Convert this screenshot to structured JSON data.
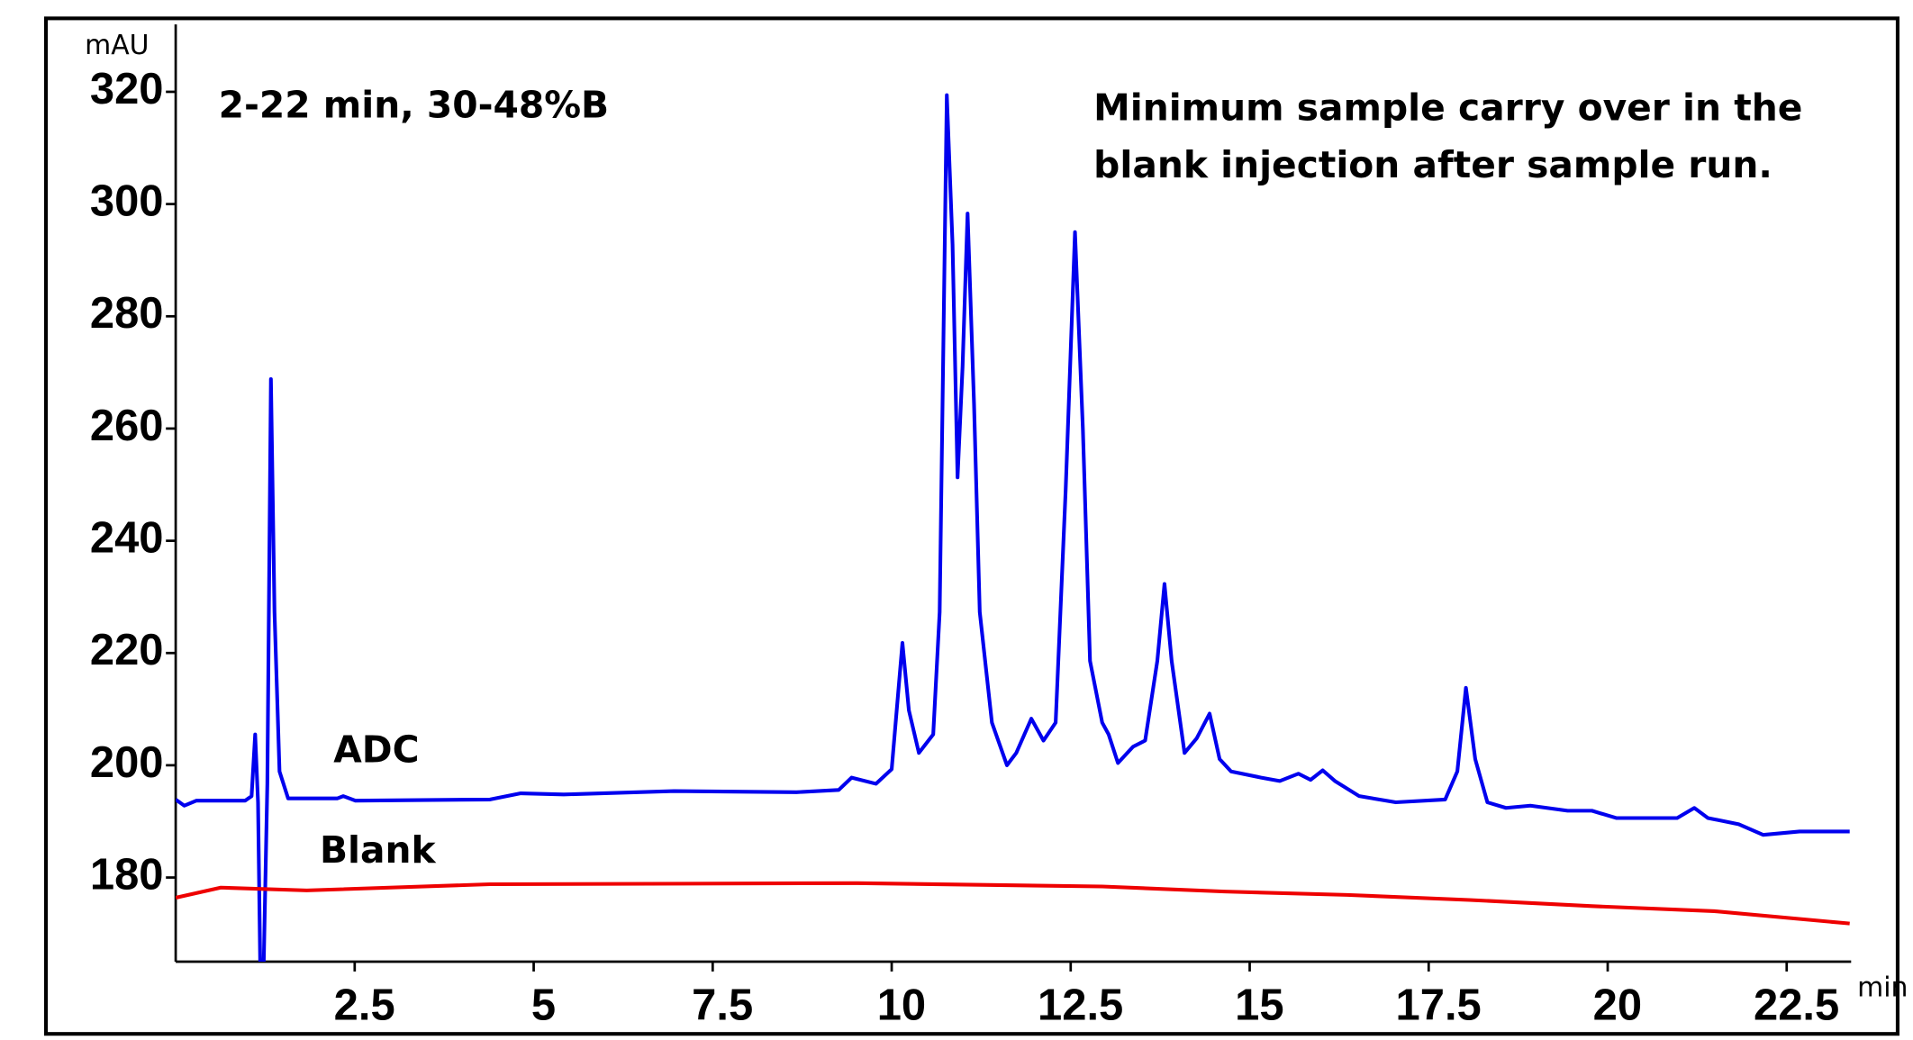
{
  "chart_data": {
    "type": "line",
    "annotations": [
      "2-22 min, 30-48%B",
      "Minimum sample carry over in the",
      "blank injection after sample run."
    ],
    "y_label": "mAU",
    "x_label": "min",
    "xlim": [
      0,
      23.4
    ],
    "ylim": [
      165,
      332
    ],
    "xticks": [
      2.5,
      5,
      7.5,
      10,
      12.5,
      15,
      17.5,
      20,
      22.5
    ],
    "yticks": [
      180,
      200,
      220,
      240,
      260,
      280,
      300,
      320
    ],
    "series": [
      {
        "name": "ADC",
        "color": "#0000ee",
        "x": [
          0,
          0.12,
          0.29,
          0.97,
          1.06,
          1.11,
          1.15,
          1.18,
          1.23,
          1.28,
          1.33,
          1.38,
          1.45,
          1.57,
          2.26,
          2.34,
          2.51,
          4.39,
          4.82,
          5.42,
          6.96,
          8.67,
          9.26,
          9.44,
          9.78,
          10.0,
          10.15,
          10.24,
          10.38,
          10.58,
          10.67,
          10.77,
          10.85,
          10.92,
          10.99,
          11.06,
          11.15,
          11.23,
          11.4,
          11.61,
          11.74,
          11.95,
          12.12,
          12.29,
          12.43,
          12.56,
          12.67,
          12.77,
          12.94,
          13.03,
          13.16,
          13.37,
          13.54,
          13.71,
          13.81,
          13.91,
          14.09,
          14.26,
          14.44,
          14.58,
          14.74,
          15.16,
          15.42,
          15.68,
          15.85,
          16.02,
          16.19,
          16.53,
          17.04,
          17.73,
          17.9,
          18.02,
          18.15,
          18.32,
          18.58,
          18.92,
          19.44,
          19.78,
          20.12,
          20.97,
          21.21,
          21.4,
          21.83,
          22.17,
          22.68,
          23.38
        ],
        "values": [
          193.9,
          192.8,
          193.7,
          193.7,
          194.5,
          205.5,
          193.4,
          165,
          165,
          196.7,
          268.8,
          227.3,
          198.9,
          194.1,
          194.1,
          194.5,
          193.7,
          193.9,
          195.0,
          194.8,
          195.4,
          195.2,
          195.6,
          197.8,
          196.7,
          199.3,
          221.8,
          209.8,
          202.2,
          205.5,
          227.3,
          319.4,
          292.8,
          251.3,
          271.0,
          298.3,
          264.4,
          227.3,
          207.6,
          200,
          202.2,
          208.3,
          204.4,
          207.6,
          249.1,
          295.0,
          260.0,
          218.6,
          207.6,
          205.5,
          200.4,
          203.3,
          204.4,
          218.6,
          232.3,
          218.6,
          202.2,
          204.8,
          209.2,
          201.1,
          198.9,
          197.8,
          197.2,
          198.5,
          197.4,
          199.1,
          197.2,
          194.5,
          193.4,
          193.9,
          198.9,
          213.8,
          201.1,
          193.4,
          192.4,
          192.8,
          191.9,
          191.9,
          190.6,
          190.6,
          192.4,
          190.6,
          189.5,
          187.6,
          188.2,
          188.2
        ]
      },
      {
        "name": "Blank",
        "color": "#ee0000",
        "x": [
          0,
          0.63,
          1.83,
          4.39,
          9.52,
          12.94,
          14.65,
          16.36,
          18.07,
          19.78,
          21.49,
          23.38
        ],
        "values": [
          176.4,
          178.2,
          177.7,
          178.8,
          179.0,
          178.4,
          177.5,
          176.9,
          176.0,
          174.9,
          174.0,
          171.8
        ]
      }
    ]
  }
}
